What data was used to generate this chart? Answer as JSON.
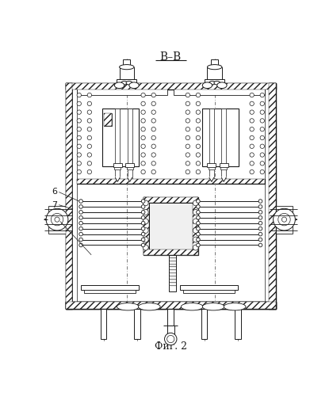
{
  "title": "В–В",
  "caption": "Фиг. 2",
  "bg_color": "#ffffff",
  "lc": "#1a1a1a",
  "fig_width": 4.2,
  "fig_height": 5.0,
  "dpi": 100
}
